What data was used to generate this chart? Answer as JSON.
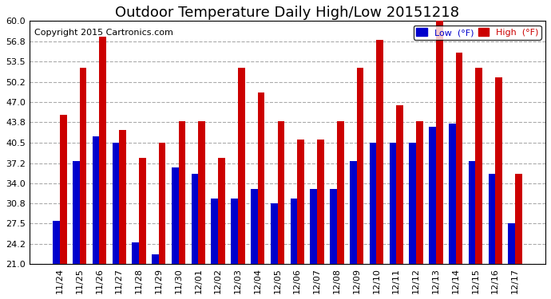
{
  "title": "Outdoor Temperature Daily High/Low 20151218",
  "copyright": "Copyright 2015 Cartronics.com",
  "legend_low": "Low  (°F)",
  "legend_high": "High  (°F)",
  "dates": [
    "11/24",
    "11/25",
    "11/26",
    "11/27",
    "11/28",
    "11/29",
    "11/30",
    "12/01",
    "12/02",
    "12/03",
    "12/04",
    "12/05",
    "12/06",
    "12/07",
    "12/08",
    "12/09",
    "12/10",
    "12/11",
    "12/12",
    "12/13",
    "12/14",
    "12/15",
    "12/16",
    "12/17"
  ],
  "lows": [
    28.0,
    37.5,
    41.5,
    40.5,
    24.5,
    22.5,
    36.5,
    35.5,
    31.5,
    31.5,
    33.0,
    30.8,
    31.5,
    33.0,
    33.0,
    37.5,
    40.5,
    40.5,
    40.5,
    43.0,
    43.5,
    37.5,
    35.5,
    27.5
  ],
  "highs": [
    45.0,
    52.5,
    57.5,
    42.5,
    38.0,
    40.5,
    44.0,
    44.0,
    38.0,
    52.5,
    48.5,
    44.0,
    41.0,
    41.0,
    44.0,
    52.5,
    57.0,
    46.5,
    44.0,
    60.0,
    55.0,
    52.5,
    51.0,
    35.5
  ],
  "low_color": "#0000cc",
  "high_color": "#cc0000",
  "bg_color": "#ffffff",
  "plot_bg_color": "#ffffff",
  "grid_color": "#aaaaaa",
  "ylim_min": 21.0,
  "ylim_max": 60.0,
  "yticks": [
    21.0,
    24.2,
    27.5,
    30.8,
    34.0,
    37.2,
    40.5,
    43.8,
    47.0,
    50.2,
    53.5,
    56.8,
    60.0
  ],
  "title_fontsize": 13,
  "copyright_fontsize": 8,
  "tick_fontsize": 8,
  "bar_width": 0.35
}
